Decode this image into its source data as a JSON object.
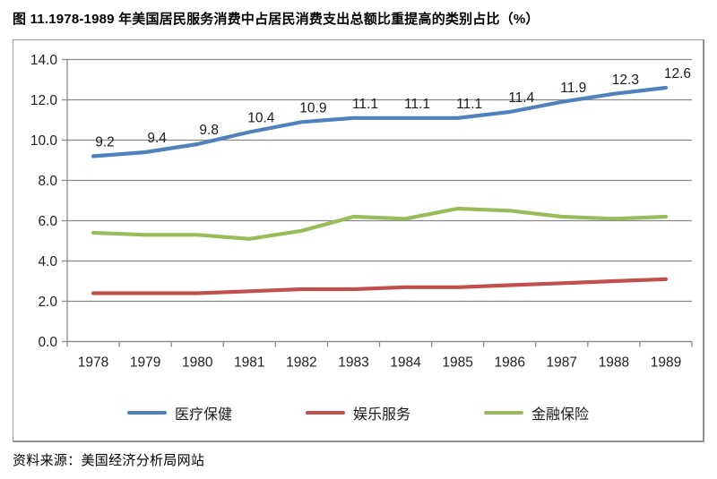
{
  "title": "图 11.1978-1989 年美国居民服务消费中占居民消费支出总额比重提高的类别占比（%）",
  "source": "资料来源：美国经济分析局网站",
  "colors": {
    "healthcare": "#4F81BD",
    "entertainment": "#C0504D",
    "finance": "#9BBB59",
    "grid": "#8a8a8a",
    "axis": "#8a8a8a",
    "tick_text": "#1f1f1f",
    "data_label_text": "#1a1a1a"
  },
  "chart_data": {
    "type": "line",
    "title": "图 11.1978-1989 年美国居民服务消费中占居民消费支出总额比重提高的类别占比（%）",
    "categories": [
      "1978",
      "1979",
      "1980",
      "1981",
      "1982",
      "1983",
      "1984",
      "1985",
      "1986",
      "1987",
      "1988",
      "1989"
    ],
    "series": [
      {
        "key": "healthcare",
        "name": "医疗保健",
        "color": "#4F81BD",
        "data_labels": true,
        "values": [
          9.2,
          9.4,
          9.8,
          10.4,
          10.9,
          11.1,
          11.1,
          11.1,
          11.4,
          11.9,
          12.3,
          12.6
        ]
      },
      {
        "key": "entertainment-services",
        "name": "娱乐服务",
        "color": "#C0504D",
        "data_labels": false,
        "values": [
          2.4,
          2.4,
          2.4,
          2.5,
          2.6,
          2.6,
          2.7,
          2.7,
          2.8,
          2.9,
          3.0,
          3.1
        ]
      },
      {
        "key": "financial-insurance",
        "name": "金融保险",
        "color": "#9BBB59",
        "data_labels": false,
        "values": [
          5.4,
          5.3,
          5.3,
          5.1,
          5.5,
          6.2,
          6.1,
          6.6,
          6.5,
          6.2,
          6.1,
          6.2
        ]
      }
    ],
    "ylim": [
      0,
      14
    ],
    "ytick_step": 2,
    "ytick_labels": [
      "0.0",
      "2.0",
      "4.0",
      "6.0",
      "8.0",
      "10.0",
      "12.0",
      "14.0"
    ],
    "xlabel": "",
    "ylabel": "",
    "grid": true,
    "legend_position": "bottom"
  }
}
